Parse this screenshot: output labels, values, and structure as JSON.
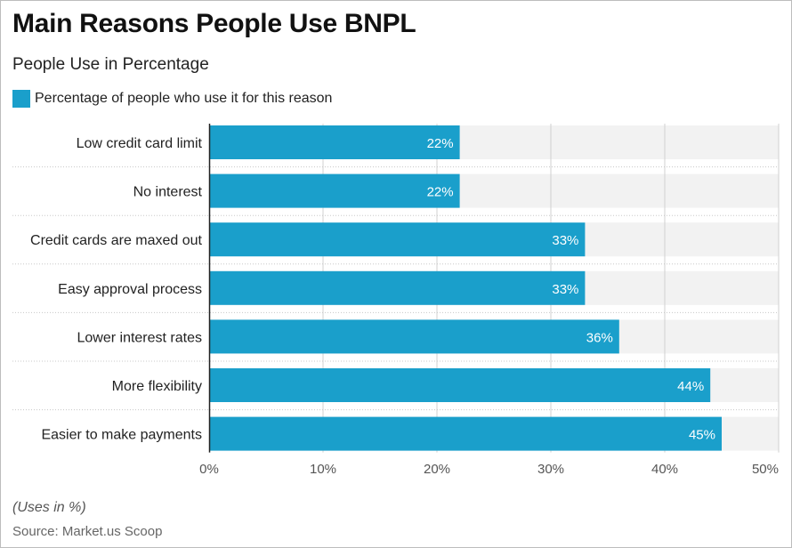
{
  "header": {
    "title": "Main Reasons People Use BNPL",
    "subtitle": "People Use in Percentage"
  },
  "footer": {
    "note": "(Uses in %)",
    "source": "Source: Market.us Scoop"
  },
  "colors": {
    "bar": "#1a9fcb",
    "track": "#f2f2f2",
    "grid": "#d0d0d0"
  },
  "chart_data": {
    "type": "bar",
    "orientation": "horizontal",
    "title": "Main Reasons People Use BNPL",
    "subtitle": "People Use in Percentage",
    "categories": [
      "Low credit card limit",
      "No interest",
      "Credit cards are maxed out",
      "Easy approval process",
      "Lower interest rates",
      "More flexibility",
      "Easier to make payments"
    ],
    "series": [
      {
        "name": "Percentage of people who use it for this reason",
        "values": [
          22,
          22,
          33,
          33,
          36,
          44,
          45
        ],
        "labels": [
          "22%",
          "22%",
          "33%",
          "33%",
          "36%",
          "44%",
          "45%"
        ]
      }
    ],
    "xlim": [
      0,
      50
    ],
    "xticks": [
      0,
      10,
      20,
      30,
      40,
      50
    ],
    "xtick_labels": [
      "0%",
      "10%",
      "20%",
      "30%",
      "40%",
      "50%"
    ],
    "grid": true,
    "legend_position": "top-left"
  }
}
